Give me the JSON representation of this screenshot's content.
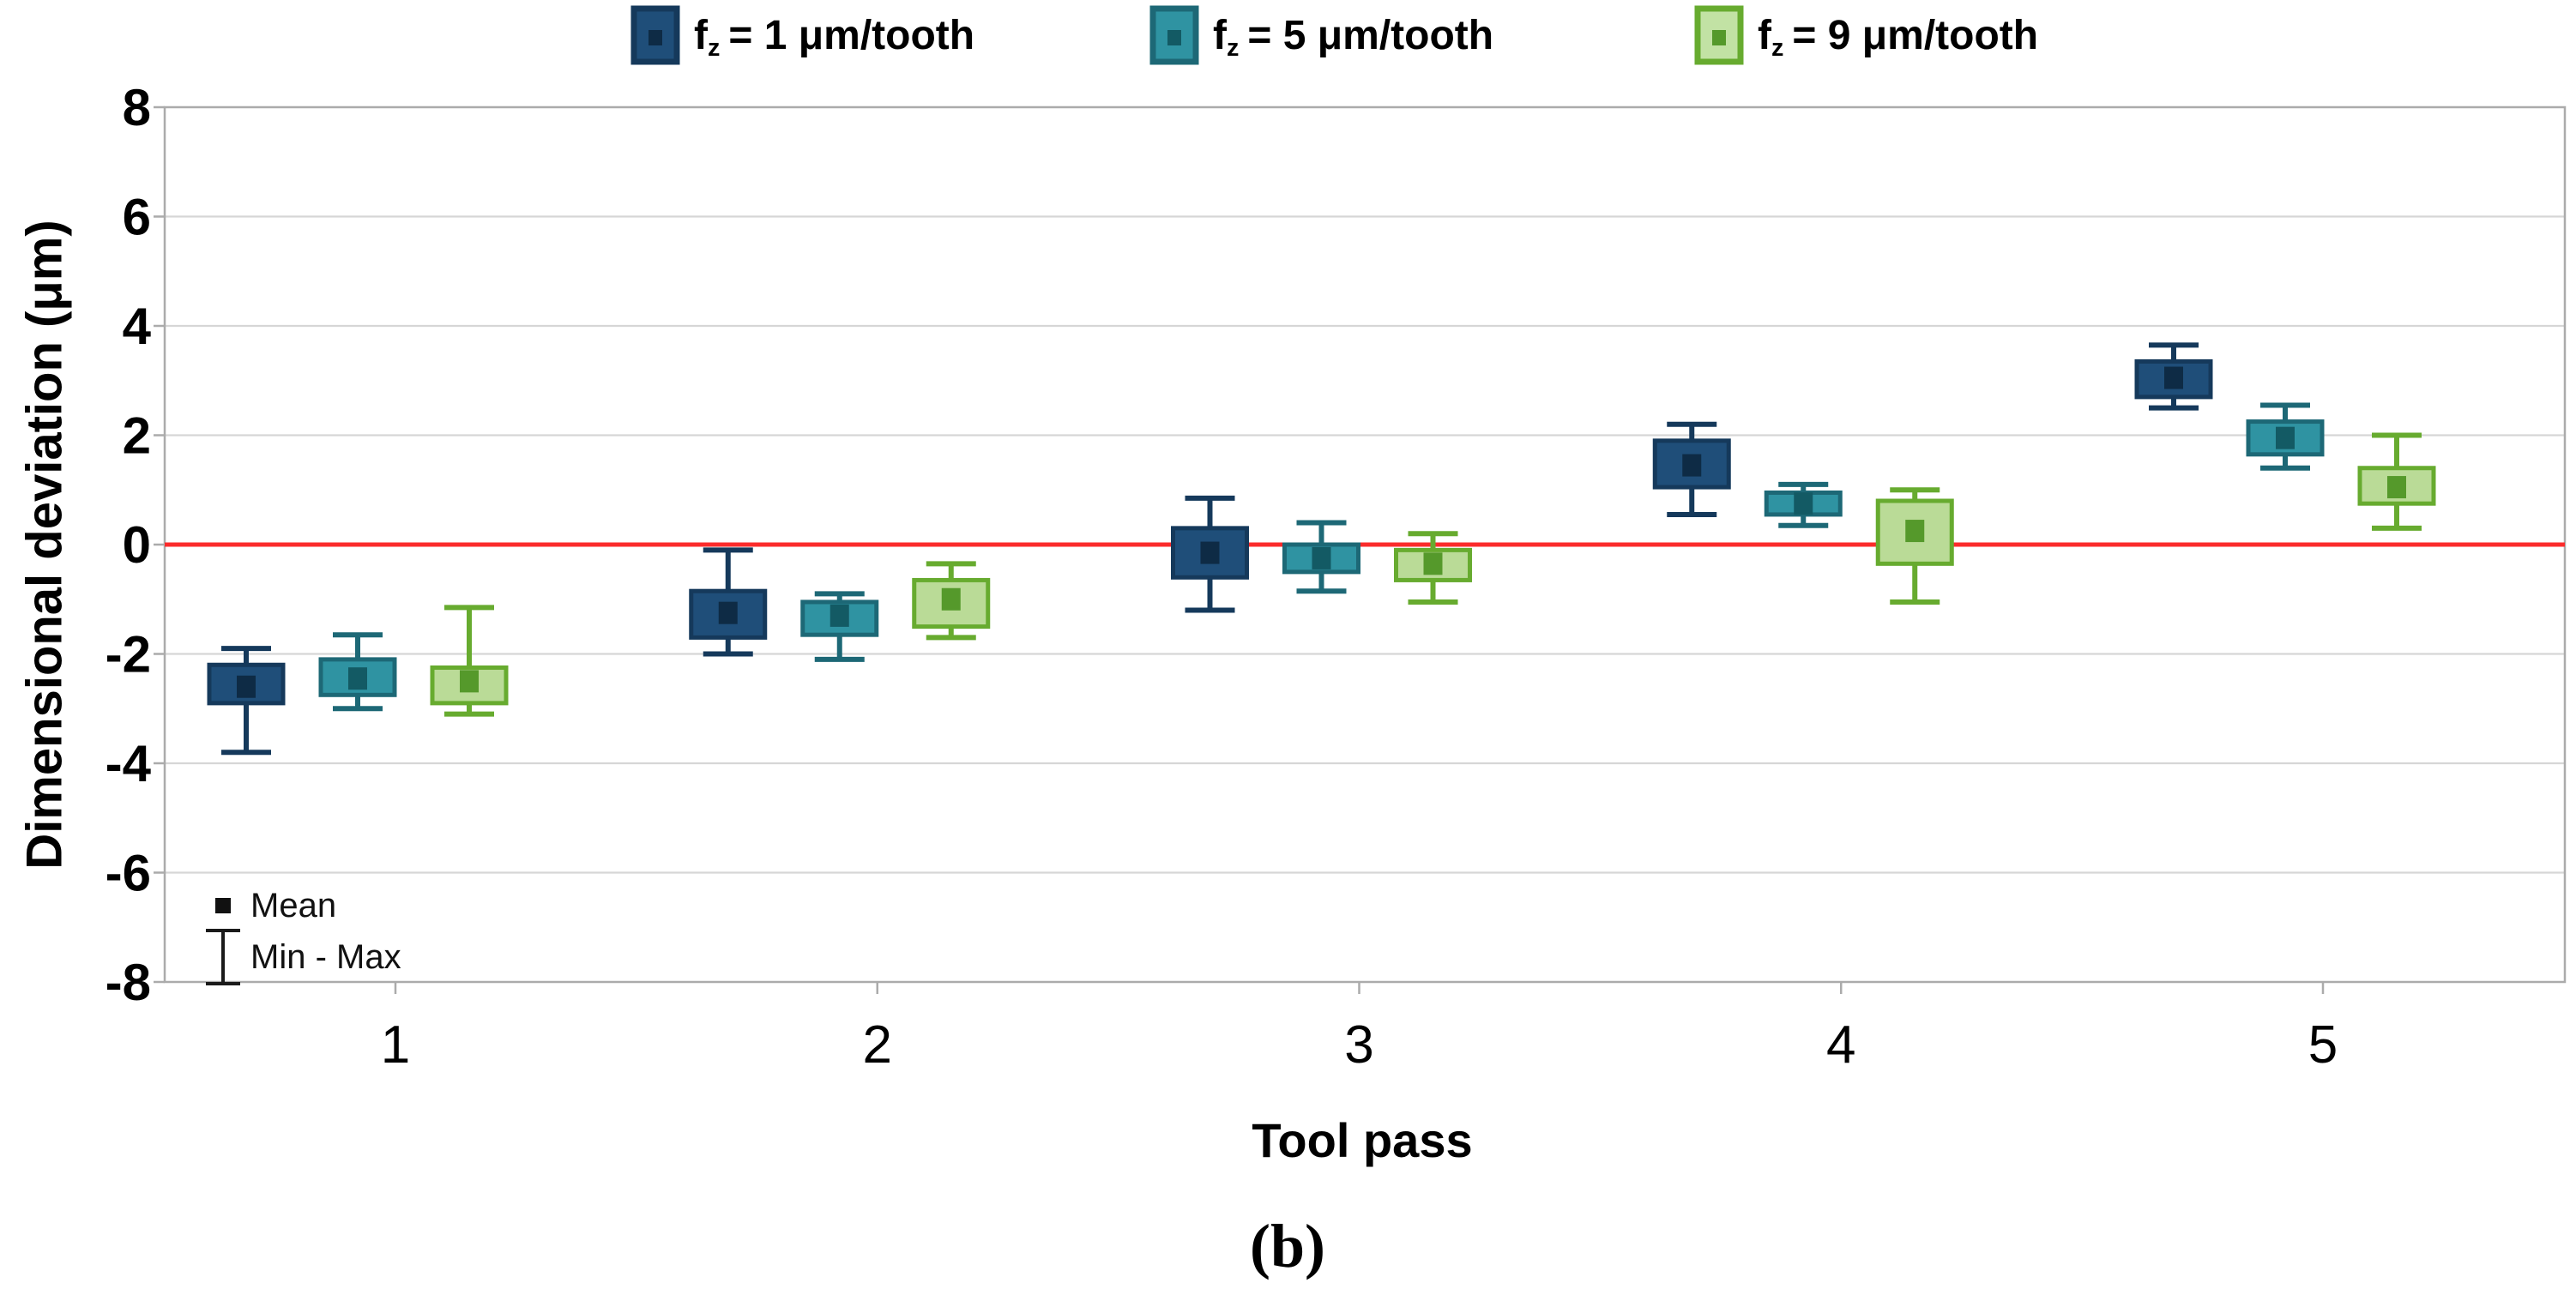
{
  "figure": {
    "caption": "(b)"
  },
  "axes": {
    "y_label": "Dimensional deviation (μm)",
    "x_label": "Tool pass"
  },
  "legend": {
    "items": [
      {
        "prefix": "f",
        "subscript": "z",
        "rest": "= 1 μm/tooth",
        "fill": "#1F4E79",
        "stroke": "#15395B",
        "marker": "#0E2B45"
      },
      {
        "prefix": "f",
        "subscript": "z",
        "rest": "= 5 μm/tooth",
        "fill": "#2F93A2",
        "stroke": "#1D6876",
        "marker": "#135A64"
      },
      {
        "prefix": "f",
        "subscript": "z",
        "rest": "= 9 μm/tooth",
        "fill": "#C2E2A4",
        "stroke": "#67AB2F",
        "marker": "#55992B"
      }
    ]
  },
  "inner_legend": {
    "mean_label": "Mean",
    "minmax_label": "Min - Max"
  },
  "chart_data": {
    "type": "box",
    "title": "",
    "xlabel": "Tool pass",
    "ylabel": "Dimensional deviation (μm)",
    "x_categories": [
      "1",
      "2",
      "3",
      "4",
      "5"
    ],
    "y_ticks": [
      8,
      6,
      4,
      2,
      0,
      -2,
      -4,
      -6,
      -8
    ],
    "ylim": [
      -8,
      8
    ],
    "grid": "horizontal",
    "legend_position": "top",
    "reference_line": {
      "y": 0,
      "color": "#FB2B2B"
    },
    "whisker_meaning": "Min - Max",
    "marker_meaning": "Mean",
    "series": [
      {
        "name": "fz = 1 μm/tooth",
        "fill": "#1F4E79",
        "stroke": "#15395B",
        "marker": "#0E2B45",
        "boxes": [
          {
            "pass": "1",
            "whisker_min": -3.8,
            "box_low": -2.9,
            "mean": -2.6,
            "box_high": -2.2,
            "whisker_max": -1.9
          },
          {
            "pass": "2",
            "whisker_min": -2.0,
            "box_low": -1.7,
            "mean": -1.25,
            "box_high": -0.85,
            "whisker_max": -0.1
          },
          {
            "pass": "3",
            "whisker_min": -1.2,
            "box_low": -0.6,
            "mean": -0.15,
            "box_high": 0.3,
            "whisker_max": 0.85
          },
          {
            "pass": "4",
            "whisker_min": 0.55,
            "box_low": 1.05,
            "mean": 1.45,
            "box_high": 1.9,
            "whisker_max": 2.2
          },
          {
            "pass": "5",
            "whisker_min": 2.5,
            "box_low": 2.7,
            "mean": 3.05,
            "box_high": 3.35,
            "whisker_max": 3.65
          }
        ]
      },
      {
        "name": "fz = 5 μm/tooth",
        "fill": "#2F93A2",
        "stroke": "#1D6876",
        "marker": "#135A64",
        "boxes": [
          {
            "pass": "1",
            "whisker_min": -3.0,
            "box_low": -2.75,
            "mean": -2.45,
            "box_high": -2.1,
            "whisker_max": -1.65
          },
          {
            "pass": "2",
            "whisker_min": -2.1,
            "box_low": -1.65,
            "mean": -1.3,
            "box_high": -1.05,
            "whisker_max": -0.9
          },
          {
            "pass": "3",
            "whisker_min": -0.85,
            "box_low": -0.5,
            "mean": -0.25,
            "box_high": 0.0,
            "whisker_max": 0.4
          },
          {
            "pass": "4",
            "whisker_min": 0.35,
            "box_low": 0.55,
            "mean": 0.75,
            "box_high": 0.95,
            "whisker_max": 1.1
          },
          {
            "pass": "5",
            "whisker_min": 1.4,
            "box_low": 1.65,
            "mean": 1.95,
            "box_high": 2.25,
            "whisker_max": 2.55
          }
        ]
      },
      {
        "name": "fz = 9 μm/tooth",
        "fill": "#BADB97",
        "stroke": "#67AB2F",
        "marker": "#55992B",
        "boxes": [
          {
            "pass": "1",
            "whisker_min": -3.1,
            "box_low": -2.9,
            "mean": -2.5,
            "box_high": -2.25,
            "whisker_max": -1.15
          },
          {
            "pass": "2",
            "whisker_min": -1.7,
            "box_low": -1.5,
            "mean": -1.0,
            "box_high": -0.65,
            "whisker_max": -0.35
          },
          {
            "pass": "3",
            "whisker_min": -1.05,
            "box_low": -0.65,
            "mean": -0.35,
            "box_high": -0.1,
            "whisker_max": 0.2
          },
          {
            "pass": "4",
            "whisker_min": -1.05,
            "box_low": -0.35,
            "mean": 0.25,
            "box_high": 0.8,
            "whisker_max": 1.0
          },
          {
            "pass": "5",
            "whisker_min": 0.3,
            "box_low": 0.75,
            "mean": 1.05,
            "box_high": 1.4,
            "whisker_max": 2.0
          }
        ]
      }
    ]
  },
  "colors": {
    "grid": "#D6D6D6",
    "border": "#ABABAB",
    "text": "#000000",
    "background": "#FFFFFF"
  }
}
